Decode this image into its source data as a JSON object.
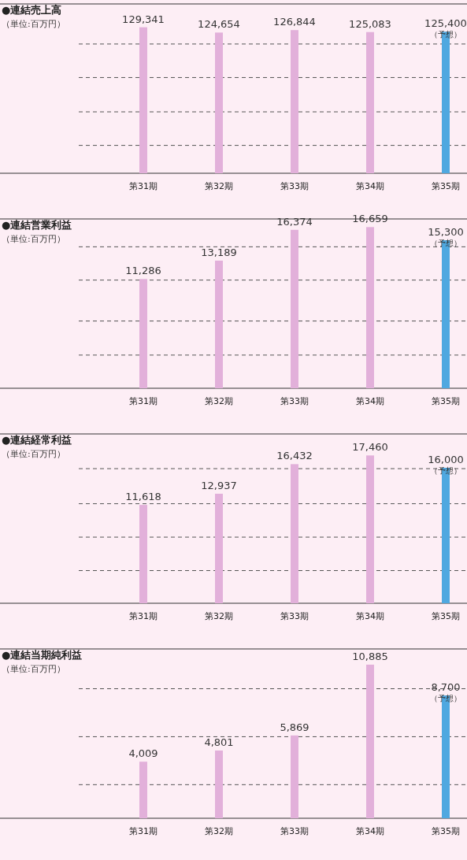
{
  "chart_data": [
    {
      "type": "bar",
      "title": "●連結売上高",
      "subtitle": "（単位:百万円）",
      "categories": [
        "第31期",
        "第32期",
        "第33期",
        "第34期",
        "第35期"
      ],
      "values": [
        129341,
        124654,
        126844,
        125083,
        125400
      ],
      "value_labels": [
        "129,341",
        "124,654",
        "126,844",
        "125,083",
        "125,400"
      ],
      "colors": [
        "#e2b0da",
        "#e2b0da",
        "#e2b0da",
        "#e2b0da",
        "#4fa8e0"
      ],
      "ylim": [
        0,
        150000
      ],
      "yticks": [
        {
          "value": 24700,
          "label": null
        },
        {
          "value": 54400,
          "label": null
        },
        {
          "value": 84800,
          "label": null
        },
        {
          "value": 114500,
          "label": null
        }
      ],
      "grid": "y",
      "annotations": [
        {
          "text": "（予想）",
          "x": "第35期",
          "y": 125400
        }
      ]
    },
    {
      "type": "bar",
      "title": "●連結営業利益",
      "subtitle": "（単位:百万円）",
      "categories": [
        "第31期",
        "第32期",
        "第33期",
        "第34期",
        "第35期"
      ],
      "values": [
        11286,
        13189,
        16374,
        16659,
        15300
      ],
      "value_labels": [
        "11,286",
        "13,189",
        "16,374",
        "16,659",
        "15,300"
      ],
      "colors": [
        "#e2b0da",
        "#e2b0da",
        "#e2b0da",
        "#e2b0da",
        "#4fa8e0"
      ],
      "ylim": [
        0,
        17500
      ],
      "yticks": [
        {
          "value": 3430,
          "label": null
        },
        {
          "value": 6950,
          "label": null
        },
        {
          "value": 11180,
          "label": null
        },
        {
          "value": 14620,
          "label": null
        }
      ],
      "grid": "y",
      "annotations": [
        {
          "text": "（予想）",
          "x": "第35期",
          "y": 15300
        }
      ]
    },
    {
      "type": "bar",
      "title": "●連結経常利益",
      "subtitle": "（単位:百万円）",
      "categories": [
        "第31期",
        "第32期",
        "第33期",
        "第34期",
        "第35期"
      ],
      "values": [
        11618,
        12937,
        16432,
        17460,
        16000
      ],
      "value_labels": [
        "11,618",
        "12,937",
        "16,432",
        "17,460",
        "16,000"
      ],
      "colors": [
        "#e2b0da",
        "#e2b0da",
        "#e2b0da",
        "#e2b0da",
        "#4fa8e0"
      ],
      "ylim": [
        0,
        20000
      ],
      "yticks": [
        {
          "value": 3860,
          "label": null
        },
        {
          "value": 7810,
          "label": null
        },
        {
          "value": 11760,
          "label": null
        },
        {
          "value": 15900,
          "label": null
        }
      ],
      "grid": "y",
      "annotations": [
        {
          "text": "（予想）",
          "x": "第35期",
          "y": 16000
        }
      ]
    },
    {
      "type": "bar",
      "title": "●連結当期純利益",
      "subtitle": "（単位:百万円）",
      "categories": [
        "第31期",
        "第32期",
        "第33期",
        "第34期",
        "第35期"
      ],
      "values": [
        4009,
        4801,
        5869,
        10885,
        8700
      ],
      "value_labels": [
        "4,009",
        "4,801",
        "5,869",
        "10,885",
        "8,700"
      ],
      "colors": [
        "#e2b0da",
        "#e2b0da",
        "#e2b0da",
        "#e2b0da",
        "#4fa8e0"
      ],
      "ylim": [
        0,
        12000
      ],
      "yticks": [
        {
          "value": 2380,
          "label": null
        },
        {
          "value": 5780,
          "label": null
        },
        {
          "value": 9180,
          "label": null
        }
      ],
      "grid": "y",
      "annotations": [
        {
          "text": "（予想）",
          "x": "第35期",
          "y": 8700
        }
      ]
    }
  ]
}
